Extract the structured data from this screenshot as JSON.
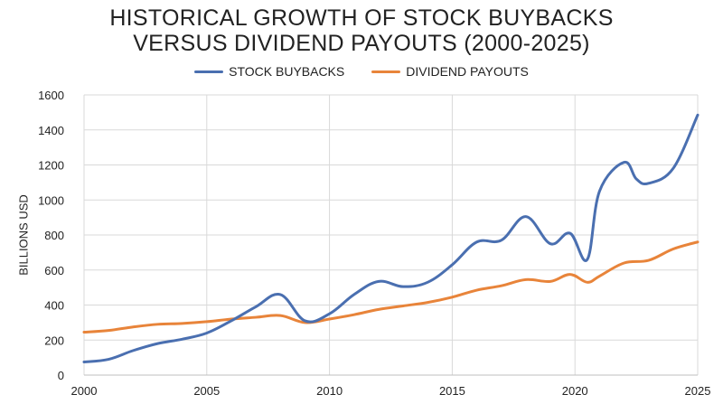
{
  "chart_data": {
    "type": "line",
    "title": [
      "HISTORICAL GROWTH OF STOCK BUYBACKS",
      "VERSUS DIVIDEND PAYOUTS (2000-2025)"
    ],
    "xlabel": "",
    "ylabel": "BILLIONS USD",
    "xlim": [
      2000,
      2025
    ],
    "ylim": [
      0,
      1600
    ],
    "xticks": [
      2000,
      2005,
      2010,
      2015,
      2020,
      2025
    ],
    "yticks": [
      0,
      200,
      400,
      600,
      800,
      1000,
      1200,
      1400,
      1600
    ],
    "grid": true,
    "legend_position": "top",
    "series": [
      {
        "name": "STOCK BUYBACKS",
        "color": "#4a6fb0",
        "x": [
          2000,
          2001,
          2002,
          2003,
          2004,
          2005,
          2006,
          2007,
          2008,
          2009,
          2010,
          2011,
          2012,
          2013,
          2014,
          2015,
          2016,
          2017,
          2018,
          2019,
          2019.8,
          2020.5,
          2021,
          2022,
          2022.5,
          2023,
          2024,
          2025
        ],
        "y": [
          75,
          90,
          140,
          180,
          205,
          240,
          310,
          390,
          460,
          310,
          350,
          460,
          535,
          505,
          530,
          630,
          760,
          770,
          905,
          750,
          810,
          660,
          1050,
          1215,
          1120,
          1095,
          1180,
          1485
        ]
      },
      {
        "name": "DIVIDEND PAYOUTS",
        "color": "#e8843a",
        "x": [
          2000,
          2001,
          2002,
          2003,
          2004,
          2005,
          2006,
          2007,
          2008,
          2009,
          2010,
          2011,
          2012,
          2013,
          2014,
          2015,
          2016,
          2017,
          2018,
          2019,
          2019.8,
          2020.5,
          2021,
          2022,
          2023,
          2024,
          2025
        ],
        "y": [
          245,
          255,
          275,
          290,
          295,
          305,
          320,
          330,
          340,
          300,
          320,
          345,
          375,
          395,
          415,
          445,
          485,
          510,
          545,
          535,
          575,
          530,
          565,
          640,
          655,
          720,
          760
        ]
      }
    ]
  }
}
